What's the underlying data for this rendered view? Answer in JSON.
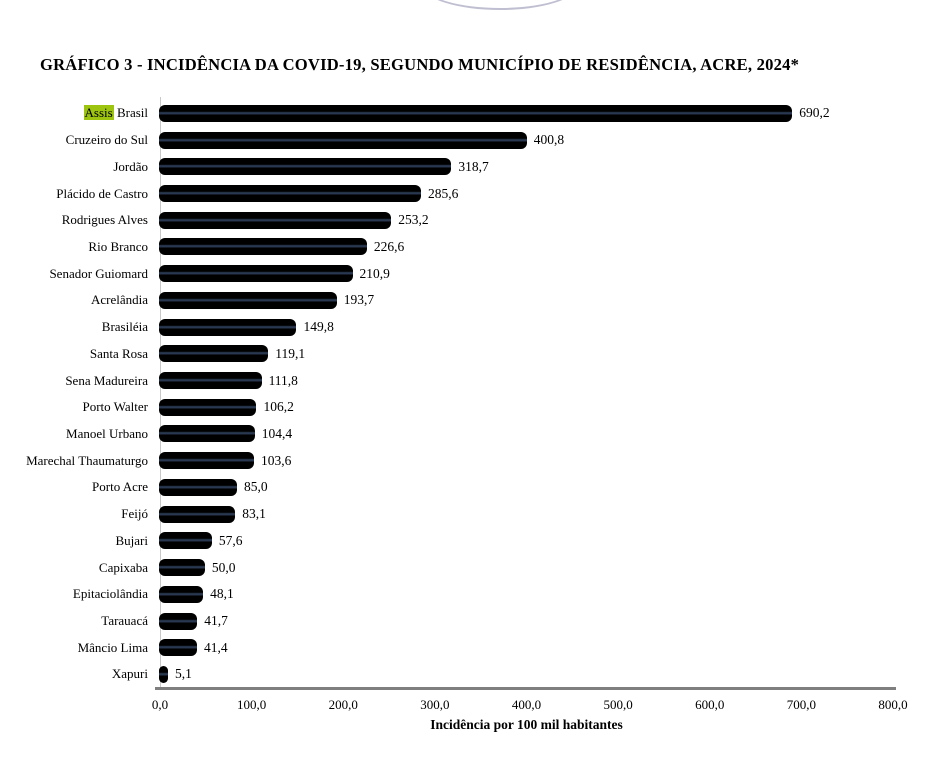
{
  "page": {
    "background": "#ffffff"
  },
  "decor": {
    "top_arc_color": "#bfbfd1"
  },
  "title": "GRÁFICO 3 - INCIDÊNCIA DA COVID-19, SEGUNDO MUNICÍPIO DE RESIDÊNCIA, ACRE, 2024*",
  "chart_data": {
    "type": "bar",
    "orientation": "horizontal",
    "title": "GRÁFICO 3 - INCIDÊNCIA DA COVID-19, SEGUNDO MUNICÍPIO DE RESIDÊNCIA, ACRE, 2024*",
    "xlabel": "Incidência por 100 mil habitantes",
    "ylabel": "",
    "xlim": [
      0,
      800
    ],
    "grid": false,
    "legend": null,
    "x_tick_labels": [
      "0,0",
      "100,0",
      "200,0",
      "300,0",
      "400,0",
      "500,0",
      "600,0",
      "700,0",
      "800,0"
    ],
    "categories": [
      "Assis Brasil",
      "Cruzeiro do Sul",
      "Jordão",
      "Plácido de Castro",
      "Rodrigues Alves",
      "Rio Branco",
      "Senador Guiomard",
      "Acrelândia",
      "Brasiléia",
      "Santa Rosa",
      "Sena Madureira",
      "Porto Walter",
      "Manoel Urbano",
      "Marechal Thaumaturgo",
      "Porto Acre",
      "Feijó",
      "Bujari",
      "Capixaba",
      "Epitaciolândia",
      "Tarauacá",
      "Mâncio Lima",
      "Xapuri"
    ],
    "values": [
      690.2,
      400.8,
      318.7,
      285.6,
      253.2,
      226.6,
      210.9,
      193.7,
      149.8,
      119.1,
      111.8,
      106.2,
      104.4,
      103.6,
      85.0,
      83.1,
      57.6,
      50.0,
      48.1,
      41.7,
      41.4,
      5.1
    ],
    "value_labels": [
      "690,2",
      "400,8",
      "318,7",
      "285,6",
      "253,2",
      "226,6",
      "210,9",
      "193,7",
      "149,8",
      "119,1",
      "111,8",
      "106,2",
      "104,4",
      "103,6",
      "85,0",
      "83,1",
      "57,6",
      "50,0",
      "48,1",
      "41,7",
      "41,4",
      "5,1"
    ],
    "bar_color": "#000000",
    "bar_sheen_color": "#2a3a52",
    "axis_line_color": "#7f7f7f",
    "plot_border_color": "#c9c9c9",
    "search_highlight": {
      "category_index": 0,
      "text": "Assis",
      "color": "#9dc40e"
    }
  }
}
